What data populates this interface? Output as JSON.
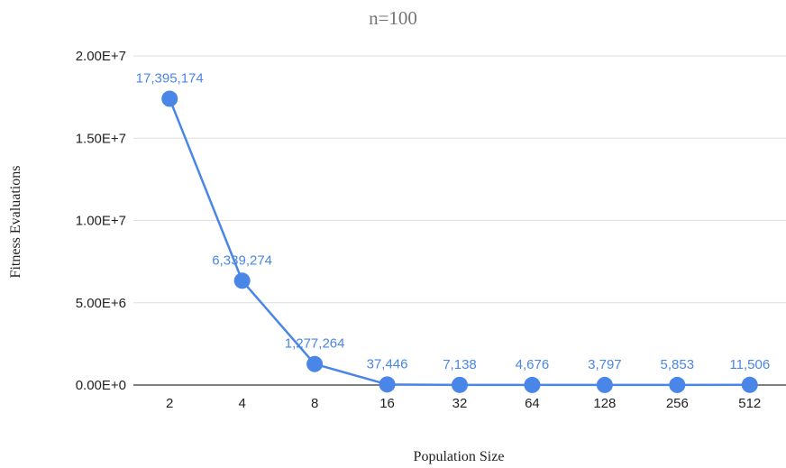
{
  "chart_data": {
    "type": "line",
    "title": "n=100",
    "xlabel": "Population Size",
    "ylabel": "Fitness Evaluations",
    "categories": [
      "2",
      "4",
      "8",
      "16",
      "32",
      "64",
      "128",
      "256",
      "512"
    ],
    "series": [
      {
        "values": [
          17395174,
          6339274,
          1277264,
          37446,
          7138,
          4676,
          3797,
          5853,
          11506
        ],
        "data_labels": [
          "17,395,174",
          "6,339,274",
          "1,277,264",
          "37,446",
          "7,138",
          "4,676",
          "3,797",
          "5,853",
          "11,506"
        ]
      }
    ],
    "yticks": [
      0,
      5000000,
      10000000,
      15000000,
      20000000
    ],
    "ytick_labels": [
      "0.00E+0",
      "5.00E+6",
      "1.00E+7",
      "1.50E+7",
      "2.00E+7"
    ],
    "ylim": [
      0,
      20000000
    ],
    "grid": true,
    "legend": "none",
    "colors": {
      "series": "#4a86e8",
      "grid": "#dddddd",
      "axis": "#333333",
      "title": "#757575"
    }
  }
}
